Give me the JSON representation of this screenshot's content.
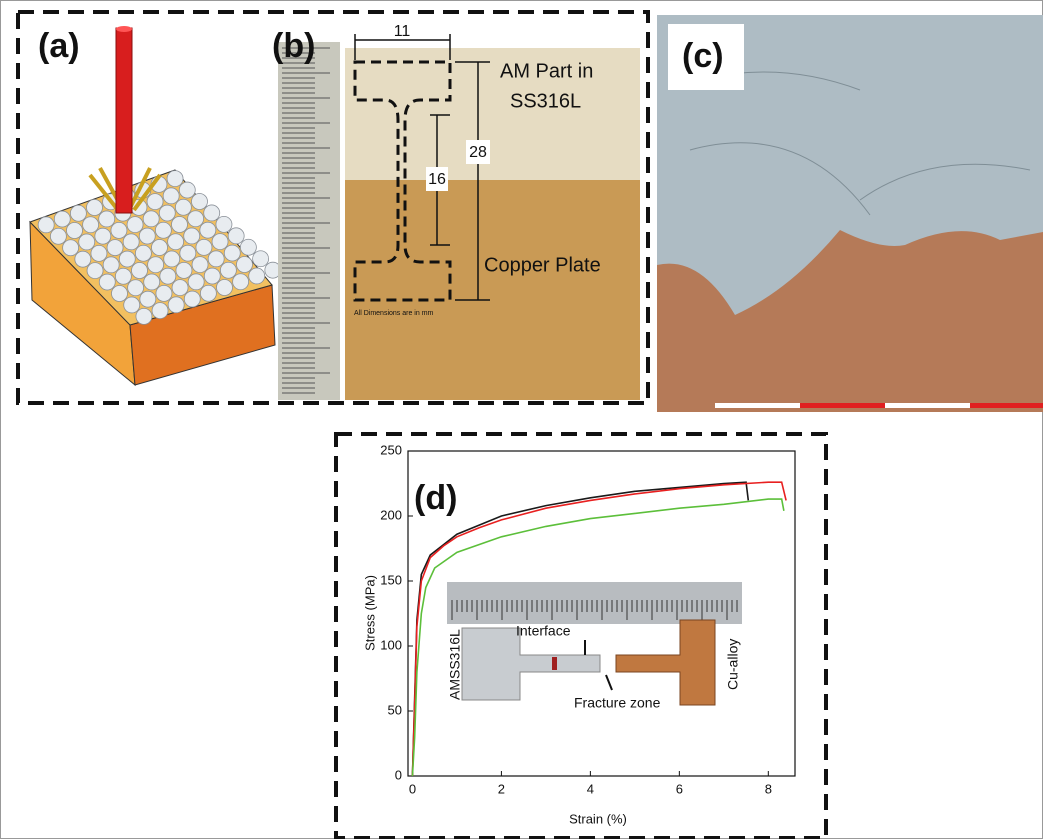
{
  "panels": {
    "a": {
      "label": "(a)"
    },
    "b": {
      "label": "(b)",
      "dimensions": [
        11,
        16,
        28
      ],
      "texts": [
        "AM Part in",
        "SS316L",
        "Copper Plate"
      ],
      "note": "All Dimensions are in mm"
    },
    "c": {
      "label": "(c)"
    }
  },
  "chart_data": {
    "type": "line",
    "label": "(d)",
    "xlabel": "Strain (%)",
    "ylabel": "Stress (MPa)",
    "xlim": [
      -0.1,
      8.6
    ],
    "ylim": [
      0,
      250
    ],
    "xticks": [
      0,
      2,
      4,
      6,
      8
    ],
    "yticks": [
      0,
      50,
      100,
      150,
      200,
      250
    ],
    "annotations": [
      "Interface",
      "AMSS316L",
      "Cu-alloy",
      "Fracture zone"
    ],
    "series": [
      {
        "color": "#1a1a1a",
        "x": [
          0,
          0.05,
          0.1,
          0.2,
          0.4,
          0.7,
          1,
          1.5,
          2,
          3,
          4,
          5,
          6,
          7,
          7.5,
          7.55
        ],
        "values": [
          0,
          60,
          120,
          155,
          170,
          178,
          186,
          193,
          200,
          208,
          214,
          219,
          222,
          225,
          226,
          212
        ]
      },
      {
        "color": "#e82020",
        "x": [
          0,
          0.05,
          0.1,
          0.2,
          0.4,
          0.7,
          1,
          1.5,
          2,
          3,
          4,
          5,
          6,
          7,
          8,
          8.3,
          8.4
        ],
        "values": [
          0,
          55,
          115,
          150,
          168,
          177,
          184,
          191,
          197,
          206,
          212,
          217,
          221,
          224,
          226,
          226,
          212
        ]
      },
      {
        "color": "#5cbf3a",
        "x": [
          0,
          0.05,
          0.1,
          0.2,
          0.3,
          0.5,
          1,
          2,
          3,
          4,
          5,
          6,
          7,
          8,
          8.3,
          8.35
        ],
        "values": [
          0,
          30,
          80,
          125,
          145,
          160,
          172,
          184,
          192,
          198,
          202,
          206,
          209,
          213,
          213,
          204
        ]
      }
    ]
  }
}
